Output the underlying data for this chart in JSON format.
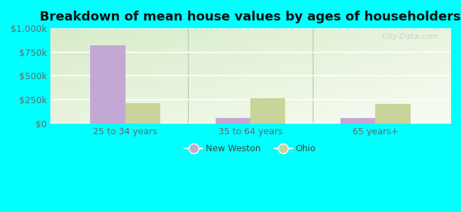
{
  "title": "Breakdown of mean house values by ages of householders",
  "categories": [
    "25 to 34 years",
    "35 to 64 years",
    "65 years+"
  ],
  "new_weston_values": [
    820000,
    55000,
    60000
  ],
  "ohio_values": [
    215000,
    265000,
    210000
  ],
  "ylim": [
    0,
    1000000
  ],
  "yticks": [
    0,
    250000,
    500000,
    750000,
    1000000
  ],
  "ytick_labels": [
    "$0",
    "$250k",
    "$500k",
    "$750k",
    "$1,000k"
  ],
  "new_weston_color": "#c4a8d4",
  "ohio_color": "#c8d49a",
  "background_color": "#00ffff",
  "bar_width": 0.28,
  "legend_labels": [
    "New Weston",
    "Ohio"
  ],
  "title_fontsize": 13,
  "tick_fontsize": 9,
  "legend_fontsize": 9,
  "watermark": "City-Data.com"
}
